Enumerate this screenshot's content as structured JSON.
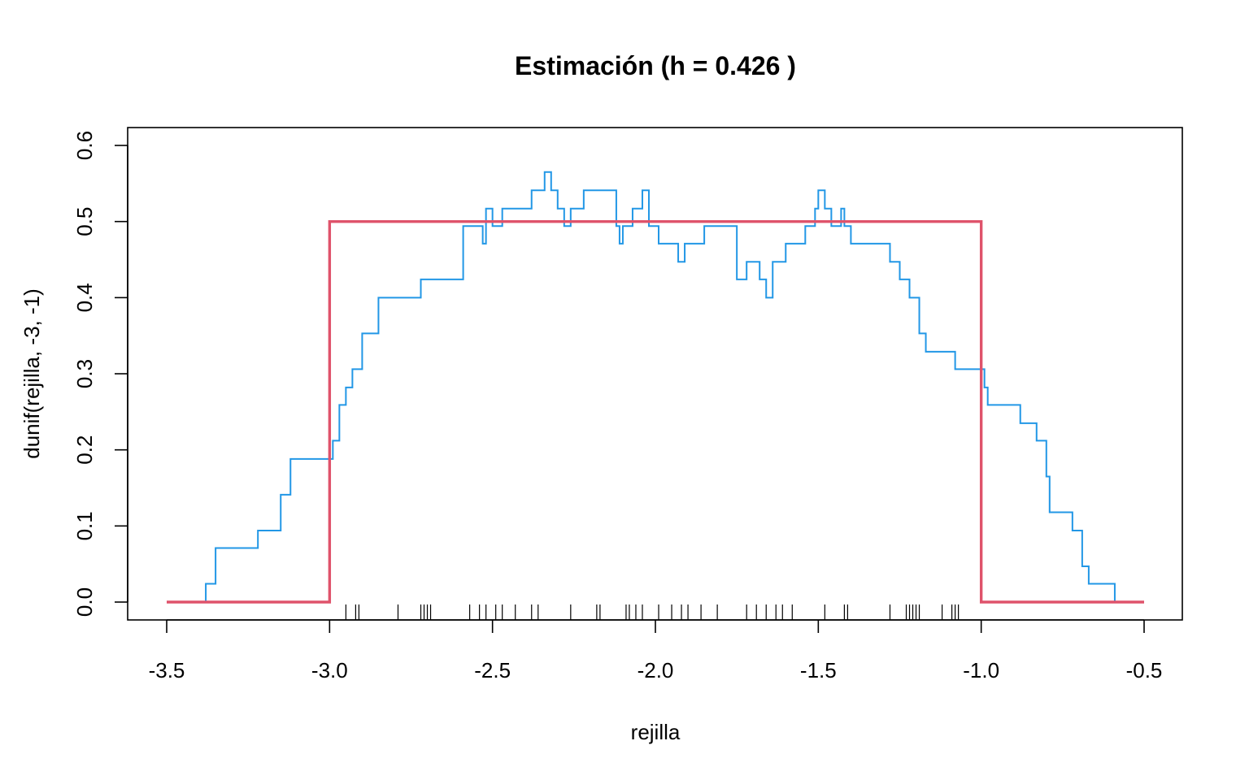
{
  "chart_data": {
    "type": "line",
    "title": "Estimación (h = 0.426 )",
    "xlabel": "rejilla",
    "ylabel": "dunif(rejilla, -3, -1)",
    "xlim": [
      -3.5,
      -0.5
    ],
    "ylim": [
      0.0,
      0.6
    ],
    "xticks": [
      -3.5,
      -3.0,
      -2.5,
      -2.0,
      -1.5,
      -1.0,
      -0.5
    ],
    "xtick_labels": [
      "-3.5",
      "-3.0",
      "-2.5",
      "-2.0",
      "-1.5",
      "-1.0",
      "-0.5"
    ],
    "yticks": [
      0.0,
      0.1,
      0.2,
      0.3,
      0.4,
      0.5,
      0.6
    ],
    "ytick_labels": [
      "0.0",
      "0.1",
      "0.2",
      "0.3",
      "0.4",
      "0.5",
      "0.6"
    ],
    "grid": false,
    "series": [
      {
        "color": "#2297E6",
        "style": "step",
        "x": [
          -3.5,
          -3.38,
          -3.35,
          -3.22,
          -3.15,
          -3.12,
          -3.06,
          -2.99,
          -2.97,
          -2.95,
          -2.93,
          -2.9,
          -2.85,
          -2.78,
          -2.72,
          -2.68,
          -2.59,
          -2.53,
          -2.52,
          -2.5,
          -2.47,
          -2.46,
          -2.38,
          -2.34,
          -2.32,
          -2.3,
          -2.28,
          -2.26,
          -2.23,
          -2.22,
          -2.12,
          -2.11,
          -2.1,
          -2.08,
          -2.07,
          -2.04,
          -2.02,
          -2.01,
          -1.99,
          -1.93,
          -1.91,
          -1.9,
          -1.85,
          -1.79,
          -1.75,
          -1.72,
          -1.68,
          -1.66,
          -1.64,
          -1.6,
          -1.54,
          -1.51,
          -1.5,
          -1.48,
          -1.46,
          -1.43,
          -1.42,
          -1.4,
          -1.36,
          -1.28,
          -1.25,
          -1.22,
          -1.19,
          -1.17,
          -1.15,
          -1.08,
          -1.02,
          -0.99,
          -0.98,
          -0.88,
          -0.83,
          -0.8,
          -0.79,
          -0.74,
          -0.72,
          -0.69,
          -0.67,
          -0.59,
          -0.5
        ],
        "y": [
          0.0,
          0.024,
          0.071,
          0.094,
          0.141,
          0.188,
          0.188,
          0.212,
          0.259,
          0.282,
          0.306,
          0.353,
          0.4,
          0.4,
          0.424,
          0.424,
          0.494,
          0.471,
          0.517,
          0.494,
          0.517,
          0.517,
          0.541,
          0.565,
          0.541,
          0.517,
          0.494,
          0.517,
          0.517,
          0.541,
          0.494,
          0.471,
          0.494,
          0.494,
          0.517,
          0.541,
          0.494,
          0.494,
          0.471,
          0.447,
          0.471,
          0.471,
          0.494,
          0.494,
          0.424,
          0.447,
          0.424,
          0.4,
          0.447,
          0.471,
          0.494,
          0.517,
          0.541,
          0.517,
          0.494,
          0.517,
          0.494,
          0.471,
          0.471,
          0.447,
          0.424,
          0.4,
          0.353,
          0.329,
          0.329,
          0.306,
          0.306,
          0.282,
          0.259,
          0.235,
          0.212,
          0.165,
          0.118,
          0.118,
          0.094,
          0.047,
          0.024,
          0.0,
          0.0
        ]
      },
      {
        "color": "#DF536B",
        "style": "line",
        "x": [
          -3.5,
          -3.0,
          -3.0,
          -1.0,
          -1.0,
          -0.5
        ],
        "y": [
          0.0,
          0.0,
          0.5,
          0.5,
          0.0,
          0.0
        ]
      }
    ],
    "rug": [
      -2.95,
      -2.92,
      -2.91,
      -2.79,
      -2.72,
      -2.71,
      -2.7,
      -2.69,
      -2.57,
      -2.54,
      -2.52,
      -2.49,
      -2.47,
      -2.43,
      -2.38,
      -2.36,
      -2.26,
      -2.18,
      -2.17,
      -2.09,
      -2.08,
      -2.06,
      -2.04,
      -1.99,
      -1.95,
      -1.92,
      -1.9,
      -1.86,
      -1.81,
      -1.72,
      -1.69,
      -1.66,
      -1.63,
      -1.61,
      -1.58,
      -1.48,
      -1.42,
      -1.41,
      -1.28,
      -1.23,
      -1.22,
      -1.21,
      -1.2,
      -1.19,
      -1.12,
      -1.09,
      -1.08,
      -1.07
    ]
  }
}
